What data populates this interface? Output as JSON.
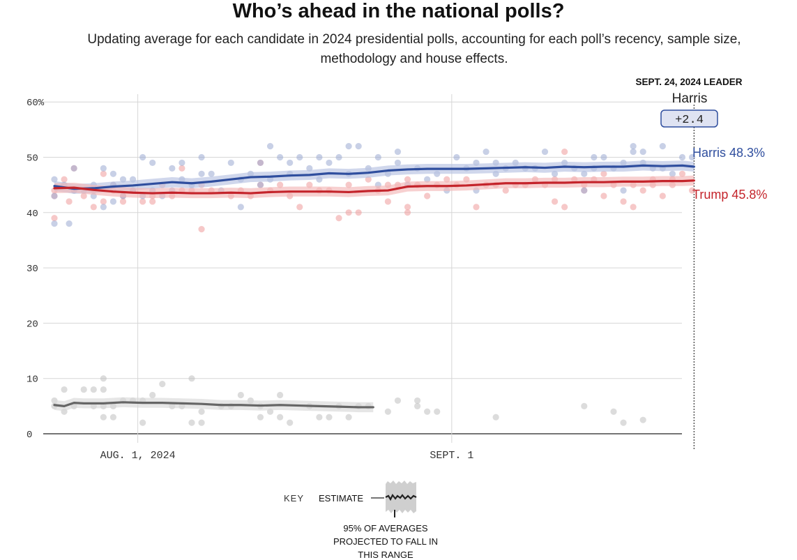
{
  "header": {
    "title": "Who’s ahead in the national polls?",
    "subtitle": "Updating average for each candidate in 2024 presidential polls, accounting for each poll’s recency, sample size, methodology and house effects."
  },
  "leader_box": {
    "label": "SEPT. 24, 2024 LEADER",
    "name": "Harris",
    "margin": "+2.4"
  },
  "series_labels": {
    "harris": "Harris 48.3%",
    "trump": "Trump 45.8%"
  },
  "colors": {
    "harris": "#2f4e9e",
    "trump": "#c4242b",
    "other": "#666666",
    "harris_poll": "#9aaad2",
    "trump_poll": "#ee9a9a",
    "other_poll": "#c0c0c0",
    "grid": "#d6d6d6",
    "leader_box_fill": "#dfe3f2"
  },
  "key": {
    "key_label": "KEY",
    "estimate_label": "ESTIMATE",
    "range_note_1": "95% OF AVERAGES",
    "range_note_2": "PROJECTED TO FALL IN",
    "range_note_3": "THIS RANGE"
  },
  "chart_data": {
    "type": "line",
    "title": "Who’s ahead in the national polls?",
    "x_unit": "days since Jul 21, 2024",
    "xlim": [
      0,
      65.2
    ],
    "ylim": [
      0,
      60
    ],
    "y_ticks": [
      0,
      10,
      20,
      30,
      40,
      50,
      60
    ],
    "y_tick_labels": [
      "0",
      "10",
      "20",
      "30",
      "40",
      "50",
      "60%"
    ],
    "x_ticks": [
      {
        "x": 8.5,
        "label": "AUG. 1, 2024"
      },
      {
        "x": 40.5,
        "label": "SEPT. 1"
      }
    ],
    "end_marker_x": 65.2,
    "series": [
      {
        "name": "Harris",
        "x": [
          0,
          2,
          4,
          6,
          8,
          10,
          12,
          14,
          16,
          18,
          20,
          22,
          24,
          26,
          28,
          30,
          32,
          34,
          36,
          38,
          40,
          42,
          44,
          46,
          48,
          50,
          52,
          54,
          56,
          58,
          60,
          62,
          64,
          65.2
        ],
        "values": [
          44.8,
          44.3,
          44.4,
          44.7,
          44.9,
          45.2,
          45.5,
          45.3,
          45.6,
          46.0,
          46.4,
          46.5,
          46.7,
          46.8,
          47.1,
          47.0,
          47.2,
          47.6,
          47.8,
          47.9,
          47.9,
          47.9,
          48.0,
          48.1,
          48.2,
          48.1,
          48.3,
          48.2,
          48.3,
          48.3,
          48.5,
          48.4,
          48.5,
          48.3
        ],
        "band": 0.9
      },
      {
        "name": "Trump",
        "x": [
          0,
          2,
          4,
          6,
          8,
          10,
          12,
          14,
          16,
          18,
          20,
          22,
          24,
          26,
          28,
          30,
          32,
          34,
          36,
          38,
          40,
          42,
          44,
          46,
          48,
          50,
          52,
          54,
          56,
          58,
          60,
          62,
          64,
          65.2
        ],
        "values": [
          44.4,
          44.5,
          44.1,
          43.8,
          43.6,
          43.5,
          43.6,
          43.5,
          43.5,
          43.6,
          43.5,
          43.7,
          43.8,
          43.8,
          43.8,
          43.7,
          43.9,
          44.0,
          44.7,
          44.8,
          44.8,
          44.9,
          45.1,
          45.3,
          45.3,
          45.4,
          45.4,
          45.5,
          45.5,
          45.6,
          45.6,
          45.7,
          45.7,
          45.8
        ],
        "band": 0.9
      },
      {
        "name": "Other",
        "x": [
          0,
          1,
          2,
          3,
          5,
          7,
          9,
          11,
          13,
          15,
          17,
          19,
          21,
          23,
          25,
          27,
          29,
          31,
          32.5
        ],
        "values": [
          5.2,
          5.0,
          5.6,
          5.5,
          5.5,
          5.7,
          5.6,
          5.6,
          5.5,
          5.4,
          5.2,
          5.2,
          5.1,
          5.2,
          5.1,
          5.0,
          4.9,
          4.8,
          4.8
        ],
        "band": 0.9
      }
    ],
    "polls": {
      "harris": [
        [
          0,
          43
        ],
        [
          0,
          38
        ],
        [
          0,
          46
        ],
        [
          1,
          45
        ],
        [
          1.5,
          38
        ],
        [
          2,
          44
        ],
        [
          2,
          48
        ],
        [
          3,
          44
        ],
        [
          4,
          43
        ],
        [
          4,
          45
        ],
        [
          5,
          48
        ],
        [
          5,
          41
        ],
        [
          6,
          45
        ],
        [
          6,
          47
        ],
        [
          6,
          42
        ],
        [
          7,
          46
        ],
        [
          7,
          43
        ],
        [
          8,
          44
        ],
        [
          8,
          46
        ],
        [
          9,
          43
        ],
        [
          9,
          50
        ],
        [
          10,
          49
        ],
        [
          10,
          44
        ],
        [
          11,
          43
        ],
        [
          12,
          44
        ],
        [
          12,
          48
        ],
        [
          13,
          49
        ],
        [
          13,
          46
        ],
        [
          14,
          45
        ],
        [
          15,
          47
        ],
        [
          15,
          50
        ],
        [
          16,
          47
        ],
        [
          17,
          44
        ],
        [
          18,
          49
        ],
        [
          19,
          46
        ],
        [
          19,
          41
        ],
        [
          20,
          47
        ],
        [
          21,
          45
        ],
        [
          21,
          49
        ],
        [
          22,
          52
        ],
        [
          22,
          46
        ],
        [
          23,
          50
        ],
        [
          24,
          49
        ],
        [
          24,
          47
        ],
        [
          25,
          50
        ],
        [
          26,
          48
        ],
        [
          27,
          50
        ],
        [
          27,
          46
        ],
        [
          28,
          49
        ],
        [
          29,
          50
        ],
        [
          30,
          52
        ],
        [
          30,
          47
        ],
        [
          31,
          52
        ],
        [
          32,
          48
        ],
        [
          33,
          45
        ],
        [
          33,
          50
        ],
        [
          34,
          47
        ],
        [
          35,
          51
        ],
        [
          35,
          49
        ],
        [
          36,
          45
        ],
        [
          37,
          48
        ],
        [
          38,
          46
        ],
        [
          39,
          47
        ],
        [
          40,
          44
        ],
        [
          41,
          50
        ],
        [
          42,
          48
        ],
        [
          43,
          49
        ],
        [
          43,
          44
        ],
        [
          44,
          51
        ],
        [
          45,
          49
        ],
        [
          45,
          47
        ],
        [
          46,
          48
        ],
        [
          47,
          49
        ],
        [
          48,
          48
        ],
        [
          49,
          48
        ],
        [
          50,
          51
        ],
        [
          51,
          47
        ],
        [
          52,
          49
        ],
        [
          53,
          48
        ],
        [
          54,
          47
        ],
        [
          54,
          44
        ],
        [
          55,
          48
        ],
        [
          55,
          50
        ],
        [
          56,
          50
        ],
        [
          57,
          48
        ],
        [
          58,
          49
        ],
        [
          58,
          44
        ],
        [
          59,
          51
        ],
        [
          59,
          52
        ],
        [
          60,
          49
        ],
        [
          60,
          51
        ],
        [
          61,
          48
        ],
        [
          62,
          48
        ],
        [
          62,
          52
        ],
        [
          63,
          47
        ],
        [
          64,
          50
        ],
        [
          65,
          50
        ]
      ],
      "trump": [
        [
          0,
          44
        ],
        [
          0,
          39
        ],
        [
          0,
          43
        ],
        [
          1,
          46
        ],
        [
          1.5,
          42
        ],
        [
          2,
          44
        ],
        [
          2,
          48
        ],
        [
          3,
          43
        ],
        [
          4,
          44
        ],
        [
          4,
          41
        ],
        [
          5,
          47
        ],
        [
          5,
          42
        ],
        [
          6,
          45
        ],
        [
          6,
          44
        ],
        [
          7,
          43
        ],
        [
          7,
          42
        ],
        [
          8,
          44
        ],
        [
          9,
          42
        ],
        [
          10,
          43
        ],
        [
          10,
          42
        ],
        [
          11,
          45
        ],
        [
          12,
          43
        ],
        [
          13,
          48
        ],
        [
          13,
          44
        ],
        [
          14,
          44
        ],
        [
          15,
          45
        ],
        [
          15,
          37
        ],
        [
          16,
          44
        ],
        [
          18,
          43
        ],
        [
          19,
          44
        ],
        [
          20,
          43
        ],
        [
          21,
          45
        ],
        [
          21,
          49
        ],
        [
          22,
          44
        ],
        [
          23,
          45
        ],
        [
          24,
          43
        ],
        [
          25,
          41
        ],
        [
          26,
          45
        ],
        [
          27,
          44
        ],
        [
          28,
          44
        ],
        [
          29,
          39
        ],
        [
          30,
          40
        ],
        [
          30,
          45
        ],
        [
          31,
          40
        ],
        [
          32,
          46
        ],
        [
          33,
          44
        ],
        [
          34,
          45
        ],
        [
          34,
          42
        ],
        [
          35,
          45
        ],
        [
          36,
          46
        ],
        [
          36,
          40
        ],
        [
          36,
          41
        ],
        [
          37,
          45
        ],
        [
          38,
          43
        ],
        [
          39,
          45
        ],
        [
          40,
          46
        ],
        [
          41,
          45
        ],
        [
          42,
          46
        ],
        [
          43,
          41
        ],
        [
          44,
          45
        ],
        [
          45,
          45
        ],
        [
          46,
          44
        ],
        [
          47,
          45
        ],
        [
          48,
          45
        ],
        [
          49,
          46
        ],
        [
          50,
          45
        ],
        [
          51,
          46
        ],
        [
          51,
          42
        ],
        [
          52,
          41
        ],
        [
          52,
          51
        ],
        [
          53,
          46
        ],
        [
          54,
          44
        ],
        [
          54,
          45
        ],
        [
          55,
          46
        ],
        [
          56,
          47
        ],
        [
          56,
          43
        ],
        [
          57,
          45
        ],
        [
          58,
          42
        ],
        [
          59,
          41
        ],
        [
          59,
          45
        ],
        [
          60,
          44
        ],
        [
          61,
          46
        ],
        [
          61,
          45
        ],
        [
          62,
          43
        ],
        [
          63,
          46
        ],
        [
          63,
          45
        ],
        [
          64,
          47
        ],
        [
          65,
          44
        ]
      ],
      "other": [
        [
          0,
          5
        ],
        [
          0,
          6
        ],
        [
          1,
          4
        ],
        [
          1,
          8
        ],
        [
          2,
          5
        ],
        [
          3,
          8
        ],
        [
          4,
          8
        ],
        [
          4,
          5
        ],
        [
          5,
          5
        ],
        [
          5,
          8
        ],
        [
          5,
          10
        ],
        [
          5,
          3
        ],
        [
          6,
          3
        ],
        [
          6,
          5
        ],
        [
          7,
          6
        ],
        [
          8,
          6
        ],
        [
          9,
          6
        ],
        [
          9,
          2
        ],
        [
          10,
          7
        ],
        [
          11,
          9
        ],
        [
          12,
          5
        ],
        [
          13,
          5
        ],
        [
          14,
          10
        ],
        [
          14,
          2
        ],
        [
          15,
          2
        ],
        [
          15,
          4
        ],
        [
          17,
          5
        ],
        [
          18,
          5
        ],
        [
          19,
          7
        ],
        [
          20,
          6
        ],
        [
          21,
          3
        ],
        [
          21,
          5
        ],
        [
          22,
          4
        ],
        [
          23,
          7
        ],
        [
          23,
          3
        ],
        [
          24,
          2
        ],
        [
          26,
          5
        ],
        [
          27,
          3
        ],
        [
          28,
          3
        ],
        [
          29,
          5
        ],
        [
          30,
          3
        ],
        [
          31,
          5
        ],
        [
          32,
          5
        ],
        [
          34,
          4
        ],
        [
          35,
          6
        ],
        [
          37,
          6
        ],
        [
          37,
          5
        ],
        [
          38,
          4
        ],
        [
          39,
          4
        ],
        [
          45,
          3
        ],
        [
          54,
          5
        ],
        [
          57,
          4
        ],
        [
          58,
          2
        ],
        [
          60,
          2.5
        ]
      ]
    }
  }
}
